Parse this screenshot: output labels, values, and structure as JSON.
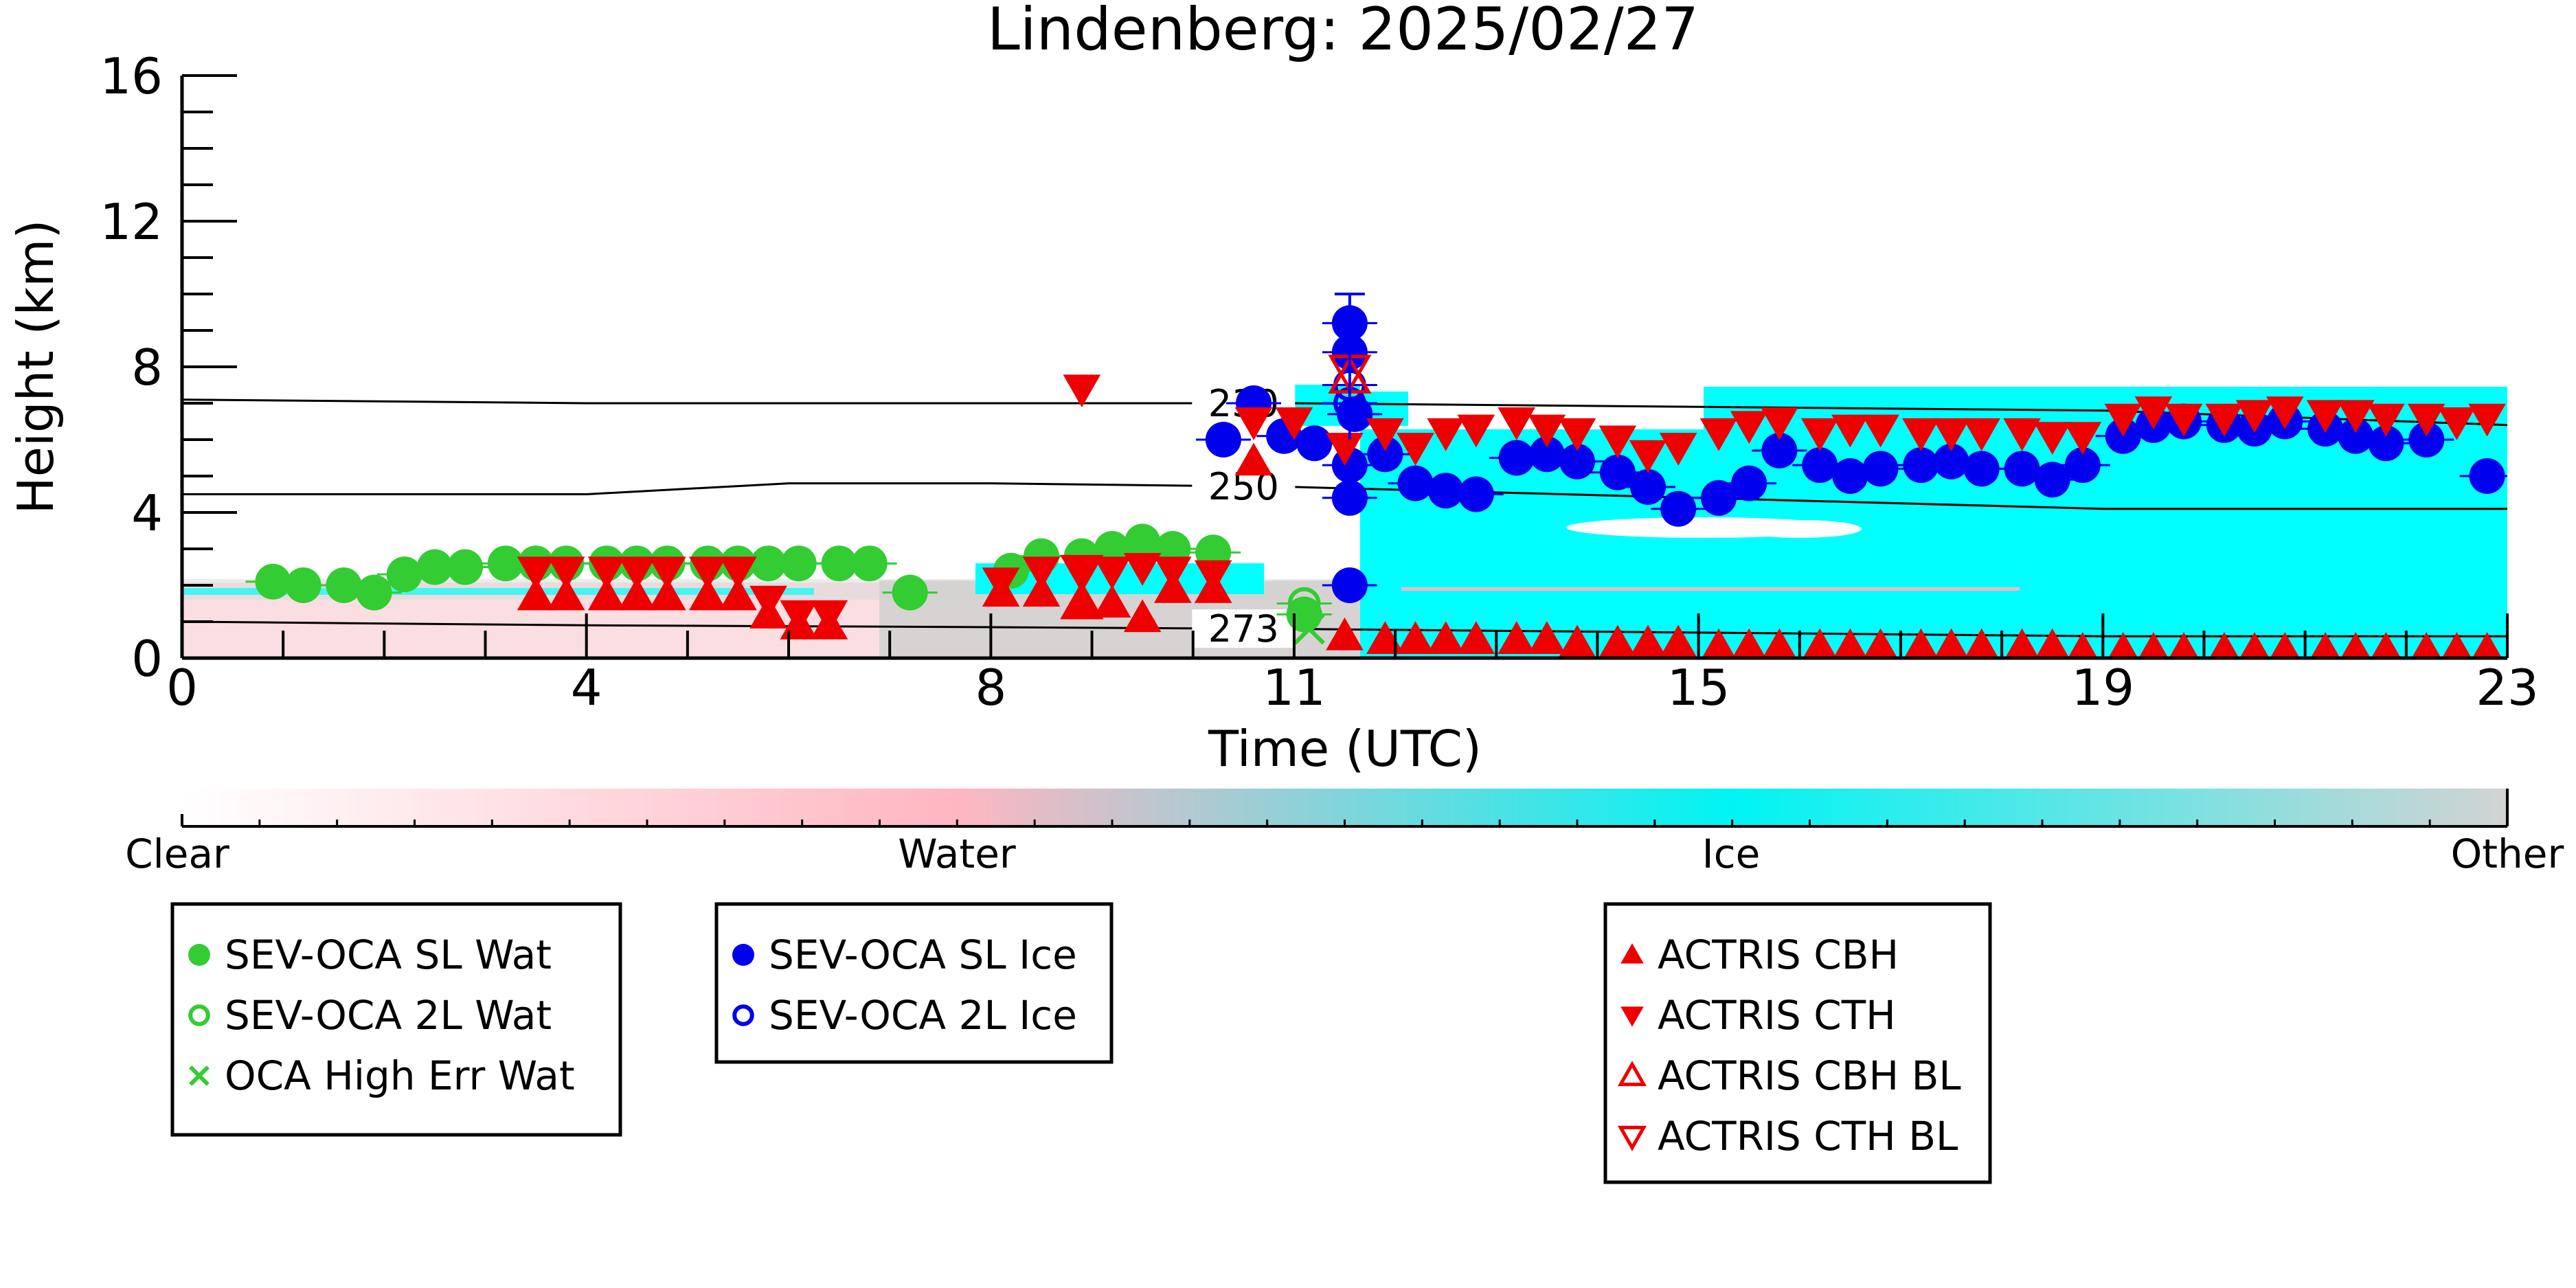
{
  "chart_data": {
    "type": "scatter",
    "title": "Lindenberg: 2025/02/27",
    "xlabel": "Time (UTC)",
    "ylabel": "Height (km)",
    "xlim": [
      0,
      23
    ],
    "ylim": [
      0,
      16
    ],
    "xticks": [
      0,
      4,
      8,
      11,
      15,
      19,
      23
    ],
    "yticks": [
      0,
      4,
      8,
      12,
      16
    ],
    "grid": false,
    "colorbar": {
      "labels": [
        "Clear",
        "Water",
        "Ice",
        "Other"
      ],
      "colors": [
        "#ffffff",
        "#ffb6c1",
        "#00ffff",
        "#d3d3d3"
      ]
    },
    "contours": [
      {
        "label": "230",
        "x": [
          0,
          4,
          8,
          11,
          15,
          19,
          23
        ],
        "y": [
          7.1,
          7.0,
          7.0,
          7.0,
          6.9,
          6.8,
          6.4
        ]
      },
      {
        "label": "250",
        "x": [
          0,
          4,
          6,
          8,
          11,
          15,
          19,
          23
        ],
        "y": [
          4.5,
          4.5,
          4.8,
          4.8,
          4.7,
          4.4,
          4.1,
          4.1
        ]
      },
      {
        "label": "273",
        "x": [
          0,
          4,
          8,
          11,
          15,
          19,
          23
        ],
        "y": [
          1.0,
          0.9,
          0.85,
          0.8,
          0.7,
          0.6,
          0.6
        ]
      }
    ],
    "series": [
      {
        "name": "SEV-OCA SL Wat",
        "marker": "filled-circle",
        "color": "#33cc33",
        "points": [
          [
            0.9,
            2.1
          ],
          [
            1.2,
            2.0
          ],
          [
            1.6,
            2.0
          ],
          [
            1.9,
            1.8
          ],
          [
            2.2,
            2.3
          ],
          [
            2.5,
            2.5
          ],
          [
            2.8,
            2.5
          ],
          [
            3.2,
            2.6
          ],
          [
            3.5,
            2.6
          ],
          [
            3.8,
            2.6
          ],
          [
            4.2,
            2.6
          ],
          [
            4.5,
            2.6
          ],
          [
            4.8,
            2.6
          ],
          [
            5.2,
            2.6
          ],
          [
            5.5,
            2.6
          ],
          [
            5.8,
            2.6
          ],
          [
            6.1,
            2.6
          ],
          [
            6.5,
            2.6
          ],
          [
            6.8,
            2.6
          ],
          [
            7.2,
            1.8
          ],
          [
            8.2,
            2.4
          ],
          [
            8.5,
            2.8
          ],
          [
            8.9,
            2.8
          ],
          [
            9.2,
            3.0
          ],
          [
            9.5,
            3.2
          ],
          [
            9.8,
            3.0
          ],
          [
            10.2,
            2.9
          ],
          [
            11.1,
            1.2
          ]
        ]
      },
      {
        "name": "SEV-OCA 2L Wat",
        "marker": "open-circle",
        "color": "#33cc33",
        "points": [
          [
            11.1,
            1.5
          ]
        ]
      },
      {
        "name": "OCA High Err Wat",
        "marker": "x",
        "color": "#33cc33",
        "points": [
          [
            11.15,
            0.8
          ]
        ]
      },
      {
        "name": "SEV-OCA SL Ice",
        "marker": "filled-circle",
        "color": "#0000ee",
        "points": [
          [
            10.3,
            6.0
          ],
          [
            10.6,
            7.0
          ],
          [
            10.9,
            6.1
          ],
          [
            11.2,
            5.9
          ],
          [
            11.55,
            9.2
          ],
          [
            11.55,
            8.4
          ],
          [
            11.55,
            5.3
          ],
          [
            11.55,
            4.4
          ],
          [
            11.55,
            2.0
          ],
          [
            11.6,
            6.7
          ],
          [
            11.9,
            5.6
          ],
          [
            12.2,
            4.8
          ],
          [
            12.5,
            4.6
          ],
          [
            12.8,
            4.5
          ],
          [
            13.2,
            5.5
          ],
          [
            13.5,
            5.6
          ],
          [
            13.8,
            5.4
          ],
          [
            14.2,
            5.1
          ],
          [
            14.5,
            4.7
          ],
          [
            14.8,
            4.1
          ],
          [
            15.2,
            4.4
          ],
          [
            15.5,
            4.8
          ],
          [
            15.8,
            5.7
          ],
          [
            16.2,
            5.3
          ],
          [
            16.5,
            5.0
          ],
          [
            16.8,
            5.2
          ],
          [
            17.2,
            5.3
          ],
          [
            17.5,
            5.4
          ],
          [
            17.8,
            5.2
          ],
          [
            18.2,
            5.2
          ],
          [
            18.5,
            4.9
          ],
          [
            18.8,
            5.3
          ],
          [
            19.2,
            6.1
          ],
          [
            19.5,
            6.4
          ],
          [
            19.8,
            6.5
          ],
          [
            20.2,
            6.4
          ],
          [
            20.5,
            6.3
          ],
          [
            20.8,
            6.5
          ],
          [
            21.2,
            6.3
          ],
          [
            21.5,
            6.1
          ],
          [
            21.8,
            5.9
          ],
          [
            22.2,
            6.0
          ],
          [
            22.8,
            5.0
          ]
        ]
      },
      {
        "name": "SEV-OCA 2L Ice",
        "marker": "open-circle",
        "color": "#0000ee",
        "points": [
          [
            11.55,
            7.5
          ],
          [
            11.55,
            7.0
          ]
        ]
      },
      {
        "name": "ACTRIS CBH",
        "marker": "triangle-up",
        "color": "#ee0000",
        "points": [
          [
            3.5,
            1.7
          ],
          [
            3.8,
            1.7
          ],
          [
            4.2,
            1.7
          ],
          [
            4.5,
            1.7
          ],
          [
            4.8,
            1.7
          ],
          [
            5.2,
            1.7
          ],
          [
            5.5,
            1.7
          ],
          [
            5.8,
            1.2
          ],
          [
            6.1,
            0.9
          ],
          [
            6.4,
            0.9
          ],
          [
            8.1,
            1.8
          ],
          [
            8.5,
            1.8
          ],
          [
            8.9,
            1.5
          ],
          [
            9.2,
            1.5
          ],
          [
            9.5,
            1.1
          ],
          [
            9.8,
            1.9
          ],
          [
            10.2,
            1.9
          ],
          [
            10.6,
            5.4
          ],
          [
            11.5,
            0.6
          ],
          [
            11.9,
            0.5
          ],
          [
            12.2,
            0.5
          ],
          [
            12.5,
            0.5
          ],
          [
            12.8,
            0.5
          ],
          [
            13.2,
            0.5
          ],
          [
            13.5,
            0.5
          ],
          [
            13.8,
            0.4
          ],
          [
            14.2,
            0.4
          ],
          [
            14.5,
            0.4
          ],
          [
            14.8,
            0.4
          ],
          [
            15.2,
            0.3
          ],
          [
            15.5,
            0.3
          ],
          [
            15.8,
            0.3
          ],
          [
            16.2,
            0.3
          ],
          [
            16.5,
            0.3
          ],
          [
            16.8,
            0.3
          ],
          [
            17.2,
            0.3
          ],
          [
            17.5,
            0.3
          ],
          [
            17.8,
            0.3
          ],
          [
            18.2,
            0.3
          ],
          [
            18.5,
            0.3
          ],
          [
            18.8,
            0.2
          ],
          [
            19.2,
            0.2
          ],
          [
            19.5,
            0.2
          ],
          [
            19.8,
            0.2
          ],
          [
            20.2,
            0.2
          ],
          [
            20.5,
            0.2
          ],
          [
            20.8,
            0.2
          ],
          [
            21.2,
            0.2
          ],
          [
            21.5,
            0.2
          ],
          [
            21.8,
            0.2
          ],
          [
            22.2,
            0.2
          ],
          [
            22.5,
            0.2
          ],
          [
            22.8,
            0.2
          ]
        ]
      },
      {
        "name": "ACTRIS CTH",
        "marker": "triangle-down",
        "color": "#ee0000",
        "points": [
          [
            3.5,
            2.4
          ],
          [
            3.8,
            2.4
          ],
          [
            4.2,
            2.4
          ],
          [
            4.5,
            2.4
          ],
          [
            4.8,
            2.4
          ],
          [
            5.2,
            2.4
          ],
          [
            5.5,
            2.4
          ],
          [
            5.8,
            1.6
          ],
          [
            6.1,
            1.2
          ],
          [
            6.4,
            1.2
          ],
          [
            8.1,
            2.1
          ],
          [
            8.5,
            2.4
          ],
          [
            8.9,
            2.4
          ],
          [
            9.2,
            2.4
          ],
          [
            9.5,
            2.5
          ],
          [
            9.8,
            2.4
          ],
          [
            10.2,
            2.3
          ],
          [
            8.9,
            7.4
          ],
          [
            10.6,
            6.5
          ],
          [
            11.0,
            6.5
          ],
          [
            11.5,
            5.8
          ],
          [
            11.9,
            6.2
          ],
          [
            12.2,
            5.8
          ],
          [
            12.5,
            6.2
          ],
          [
            12.8,
            6.3
          ],
          [
            13.2,
            6.5
          ],
          [
            13.5,
            6.3
          ],
          [
            13.8,
            6.2
          ],
          [
            14.2,
            6.0
          ],
          [
            14.5,
            5.6
          ],
          [
            14.8,
            5.8
          ],
          [
            15.2,
            6.2
          ],
          [
            15.5,
            6.4
          ],
          [
            15.8,
            6.5
          ],
          [
            16.2,
            6.2
          ],
          [
            16.5,
            6.3
          ],
          [
            16.8,
            6.3
          ],
          [
            17.2,
            6.2
          ],
          [
            17.5,
            6.2
          ],
          [
            17.8,
            6.2
          ],
          [
            18.2,
            6.2
          ],
          [
            18.5,
            6.1
          ],
          [
            18.8,
            6.1
          ],
          [
            19.2,
            6.6
          ],
          [
            19.5,
            6.8
          ],
          [
            19.8,
            6.6
          ],
          [
            20.2,
            6.6
          ],
          [
            20.5,
            6.7
          ],
          [
            20.8,
            6.8
          ],
          [
            21.2,
            6.7
          ],
          [
            21.5,
            6.7
          ],
          [
            21.8,
            6.6
          ],
          [
            22.2,
            6.6
          ],
          [
            22.5,
            6.5
          ],
          [
            22.8,
            6.6
          ]
        ]
      },
      {
        "name": "ACTRIS CBH BL",
        "marker": "open-triangle-up",
        "color": "#ee0000",
        "points": [
          [
            8.9,
            1.5
          ],
          [
            11.55,
            7.7
          ]
        ]
      },
      {
        "name": "ACTRIS CTH BL",
        "marker": "open-triangle-down",
        "color": "#ee0000",
        "points": [
          [
            8.9,
            2.4
          ],
          [
            11.55,
            7.9
          ]
        ]
      }
    ],
    "legend_groups": [
      [
        "SEV-OCA SL Wat",
        "SEV-OCA 2L Wat",
        "OCA High Err Wat"
      ],
      [
        "SEV-OCA SL Ice",
        "SEV-OCA 2L Ice"
      ],
      [
        "ACTRIS CBH",
        "ACTRIS CTH",
        "ACTRIS CBH BL",
        "ACTRIS CTH BL"
      ]
    ]
  }
}
